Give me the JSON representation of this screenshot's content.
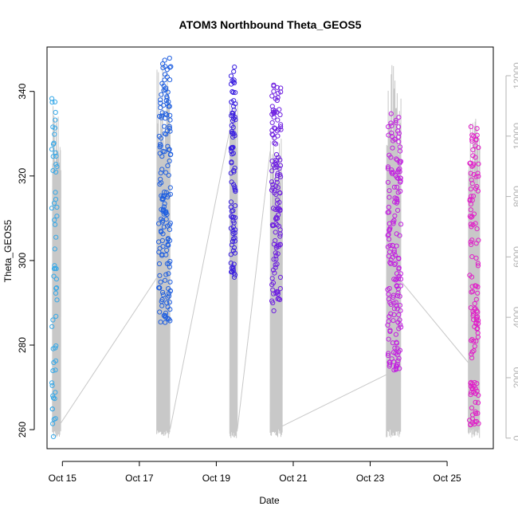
{
  "chart_data": {
    "type": "scatter",
    "title": "ATOM3 Northbound Theta_GEOS5",
    "xlabel": "Date",
    "ylabel": "Theta_GEOS5",
    "xlim": [
      14.6,
      26.2
    ],
    "ylim": [
      255.5,
      350.5
    ],
    "x_ticks": [
      {
        "value": 15,
        "label": "Oct 15"
      },
      {
        "value": 17,
        "label": "Oct 17"
      },
      {
        "value": 19,
        "label": "Oct 19"
      },
      {
        "value": 21,
        "label": "Oct 21"
      },
      {
        "value": 23,
        "label": "Oct 23"
      },
      {
        "value": 25,
        "label": "Oct 25"
      }
    ],
    "y_ticks": [
      260,
      280,
      300,
      320,
      340
    ],
    "y2_ticks": [
      0,
      2000,
      4000,
      6000,
      8000,
      10000,
      12000
    ],
    "y2_lim": [
      -350,
      12950
    ],
    "grid": false,
    "colors": {
      "flight1": "#35a8e8",
      "flight2": "#1f5fe0",
      "flight3": "#3a1fe0",
      "flight4": "#6e1fe0",
      "flight5": "#c21fe0",
      "flight6": "#e01fc8",
      "altitude": "#c8c8c8",
      "right_axis": "#b3b3b3"
    },
    "series": [
      {
        "color_key": "flight1",
        "x_range": [
          14.72,
          14.86
        ],
        "y_range": [
          258,
          339
        ],
        "count": 60
      },
      {
        "color_key": "flight2",
        "x_range": [
          17.5,
          17.82
        ],
        "y_range": [
          285,
          348
        ],
        "count": 160
      },
      {
        "color_key": "flight3",
        "x_range": [
          19.38,
          19.5
        ],
        "y_range": [
          296,
          348
        ],
        "count": 90
      },
      {
        "color_key": "flight4",
        "x_range": [
          20.44,
          20.68
        ],
        "y_range": [
          288,
          343
        ],
        "count": 130
      },
      {
        "color_key": "flight5",
        "x_range": [
          23.45,
          23.8
        ],
        "y_range": [
          274,
          335
        ],
        "count": 170
      },
      {
        "color_key": "flight6",
        "x_range": [
          25.58,
          25.82
        ],
        "y_range": [
          261,
          332
        ],
        "count": 130
      }
    ],
    "altitude_trace": {
      "segments": [
        {
          "x": [
            14.74,
            14.96
          ],
          "alt_range": [
            0,
            11000
          ]
        },
        {
          "x": [
            17.45,
            17.8
          ],
          "alt_range": [
            0,
            12600
          ]
        },
        {
          "x": [
            19.35,
            19.55
          ],
          "alt_range": [
            0,
            11200
          ]
        },
        {
          "x": [
            20.4,
            20.72
          ],
          "alt_range": [
            0,
            10200
          ]
        },
        {
          "x": [
            23.42,
            23.8
          ],
          "alt_range": [
            0,
            12400
          ]
        },
        {
          "x": [
            25.55,
            25.85
          ],
          "alt_range": [
            0,
            10600
          ]
        }
      ],
      "connectors": [
        [
          14.96,
          500,
          17.45,
          5300
        ],
        [
          17.8,
          300,
          19.35,
          10200
        ],
        [
          19.55,
          300,
          20.4,
          9500
        ],
        [
          20.72,
          400,
          23.42,
          2100
        ],
        [
          23.8,
          5200,
          25.55,
          2500
        ]
      ]
    }
  }
}
